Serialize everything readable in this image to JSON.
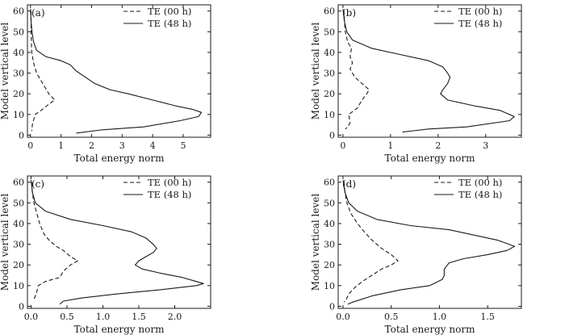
{
  "chart_data": [
    {
      "type": "line",
      "panel_label": "(a)",
      "xlabel": "Total energy norm",
      "ylabel": "Model vertical level",
      "xlim": [
        -0.1,
        5.9
      ],
      "ylim": [
        -1,
        63
      ],
      "xticks": [
        0,
        1,
        2,
        3,
        4,
        5
      ],
      "xtick_labels": [
        "0",
        "1",
        "2",
        "3",
        "4",
        "5"
      ],
      "yticks": [
        0,
        10,
        20,
        30,
        40,
        50,
        60
      ],
      "ytick_labels": [
        "0",
        "10",
        "20",
        "30",
        "40",
        "50",
        "60"
      ],
      "legend_position": "top-right",
      "series": [
        {
          "name": "TE (00 h)",
          "style": "dashed",
          "points": [
            [
              0.02,
              60
            ],
            [
              0.02,
              55
            ],
            [
              0.02,
              50
            ],
            [
              0.03,
              45
            ],
            [
              0.04,
              40
            ],
            [
              0.1,
              35
            ],
            [
              0.2,
              30
            ],
            [
              0.4,
              25
            ],
            [
              0.6,
              20
            ],
            [
              0.8,
              17
            ],
            [
              0.6,
              15
            ],
            [
              0.35,
              12
            ],
            [
              0.15,
              10
            ],
            [
              0.06,
              5
            ],
            [
              0.04,
              2
            ]
          ]
        },
        {
          "name": "TE (48 h)",
          "style": "solid",
          "points": [
            [
              0.0,
              61
            ],
            [
              0.02,
              55
            ],
            [
              0.05,
              50
            ],
            [
              0.1,
              45
            ],
            [
              0.2,
              41
            ],
            [
              0.5,
              38
            ],
            [
              1.0,
              36
            ],
            [
              1.3,
              34
            ],
            [
              1.5,
              31
            ],
            [
              1.8,
              28
            ],
            [
              2.1,
              25
            ],
            [
              2.6,
              22
            ],
            [
              3.2,
              20
            ],
            [
              4.0,
              17
            ],
            [
              4.8,
              14
            ],
            [
              5.3,
              12.5
            ],
            [
              5.6,
              11
            ],
            [
              5.5,
              9
            ],
            [
              4.9,
              7
            ],
            [
              3.7,
              4
            ],
            [
              2.3,
              2.5
            ],
            [
              1.5,
              1
            ]
          ]
        }
      ]
    },
    {
      "type": "line",
      "panel_label": "(b)",
      "xlabel": "Total energy norm",
      "ylabel": "Model vertical level",
      "xlim": [
        -0.1,
        3.75
      ],
      "ylim": [
        -1,
        63
      ],
      "xticks": [
        0,
        1,
        2,
        3
      ],
      "xtick_labels": [
        "0",
        "1",
        "2",
        "3"
      ],
      "yticks": [
        0,
        10,
        20,
        30,
        40,
        50,
        60
      ],
      "ytick_labels": [
        "0",
        "10",
        "20",
        "30",
        "40",
        "50",
        "60"
      ],
      "legend_position": "top-right",
      "series": [
        {
          "name": "TE (00 h)",
          "style": "dashed",
          "points": [
            [
              0.02,
              60
            ],
            [
              0.03,
              55
            ],
            [
              0.05,
              50
            ],
            [
              0.1,
              45
            ],
            [
              0.18,
              42
            ],
            [
              0.15,
              38
            ],
            [
              0.2,
              35
            ],
            [
              0.15,
              32
            ],
            [
              0.25,
              28
            ],
            [
              0.4,
              25
            ],
            [
              0.55,
              22
            ],
            [
              0.5,
              20
            ],
            [
              0.4,
              17
            ],
            [
              0.3,
              13
            ],
            [
              0.12,
              10
            ],
            [
              0.15,
              6
            ],
            [
              0.1,
              4
            ],
            [
              0.05,
              3
            ]
          ]
        },
        {
          "name": "TE (48 h)",
          "style": "solid",
          "points": [
            [
              0.0,
              61
            ],
            [
              0.03,
              55
            ],
            [
              0.08,
              50
            ],
            [
              0.2,
              46
            ],
            [
              0.6,
              42
            ],
            [
              1.2,
              39
            ],
            [
              1.8,
              36
            ],
            [
              2.1,
              33
            ],
            [
              2.2,
              30
            ],
            [
              2.25,
              28
            ],
            [
              2.2,
              25
            ],
            [
              2.1,
              22
            ],
            [
              2.05,
              20
            ],
            [
              2.2,
              17
            ],
            [
              2.8,
              14
            ],
            [
              3.3,
              12
            ],
            [
              3.6,
              9
            ],
            [
              3.5,
              7
            ],
            [
              2.6,
              4
            ],
            [
              1.8,
              3
            ],
            [
              1.25,
              1.5
            ]
          ]
        }
      ]
    },
    {
      "type": "line",
      "panel_label": "(c)",
      "xlabel": "Total energy norm",
      "ylabel": "Model vertical level",
      "xlim": [
        -0.05,
        2.5
      ],
      "ylim": [
        -1,
        63
      ],
      "xticks": [
        0.0,
        0.5,
        1.0,
        1.5,
        2.0
      ],
      "xtick_labels": [
        "0.0",
        "0.5",
        "1.0",
        "1.5",
        "2.0"
      ],
      "yticks": [
        0,
        10,
        20,
        30,
        40,
        50,
        60
      ],
      "ytick_labels": [
        "0",
        "10",
        "20",
        "30",
        "40",
        "50",
        "60"
      ],
      "legend_position": "top-right",
      "series": [
        {
          "name": "TE (00 h)",
          "style": "dashed",
          "points": [
            [
              0.01,
              60
            ],
            [
              0.02,
              55
            ],
            [
              0.04,
              50
            ],
            [
              0.08,
              45
            ],
            [
              0.12,
              40
            ],
            [
              0.18,
              35
            ],
            [
              0.25,
              32
            ],
            [
              0.35,
              29
            ],
            [
              0.45,
              27
            ],
            [
              0.55,
              24
            ],
            [
              0.65,
              22
            ],
            [
              0.55,
              20
            ],
            [
              0.45,
              17
            ],
            [
              0.4,
              14
            ],
            [
              0.2,
              12
            ],
            [
              0.1,
              10
            ],
            [
              0.08,
              7
            ],
            [
              0.05,
              4
            ],
            [
              0.02,
              3
            ]
          ]
        },
        {
          "name": "TE (48 h)",
          "style": "solid",
          "points": [
            [
              0.0,
              61
            ],
            [
              0.02,
              55
            ],
            [
              0.06,
              50
            ],
            [
              0.2,
              46
            ],
            [
              0.55,
              42
            ],
            [
              1.0,
              39
            ],
            [
              1.4,
              36
            ],
            [
              1.6,
              33
            ],
            [
              1.7,
              30
            ],
            [
              1.75,
              28
            ],
            [
              1.7,
              26
            ],
            [
              1.6,
              24
            ],
            [
              1.5,
              22
            ],
            [
              1.45,
              20
            ],
            [
              1.55,
              18
            ],
            [
              1.8,
              16
            ],
            [
              2.1,
              14
            ],
            [
              2.3,
              12
            ],
            [
              2.4,
              11
            ],
            [
              2.3,
              10
            ],
            [
              1.8,
              8
            ],
            [
              1.2,
              6
            ],
            [
              0.7,
              4
            ],
            [
              0.45,
              2.5
            ],
            [
              0.4,
              1
            ]
          ]
        }
      ]
    },
    {
      "type": "line",
      "panel_label": "(d)",
      "xlabel": "Total energy norm",
      "ylabel": "Model vertical level",
      "xlim": [
        -0.05,
        1.85
      ],
      "ylim": [
        -1,
        63
      ],
      "xticks": [
        0.0,
        0.5,
        1.0,
        1.5
      ],
      "xtick_labels": [
        "0.0",
        "0.5",
        "1.0",
        "1.5"
      ],
      "yticks": [
        0,
        10,
        20,
        30,
        40,
        50,
        60
      ],
      "ytick_labels": [
        "0",
        "10",
        "20",
        "30",
        "40",
        "50",
        "60"
      ],
      "legend_position": "top-right",
      "series": [
        {
          "name": "TE (00 h)",
          "style": "dashed",
          "points": [
            [
              0.01,
              60
            ],
            [
              0.02,
              55
            ],
            [
              0.04,
              50
            ],
            [
              0.08,
              45
            ],
            [
              0.15,
              40
            ],
            [
              0.22,
              36
            ],
            [
              0.3,
              32
            ],
            [
              0.4,
              28
            ],
            [
              0.5,
              25
            ],
            [
              0.57,
              22
            ],
            [
              0.5,
              20
            ],
            [
              0.4,
              18
            ],
            [
              0.3,
              15
            ],
            [
              0.2,
              12
            ],
            [
              0.12,
              9
            ],
            [
              0.06,
              6
            ],
            [
              0.03,
              3
            ],
            [
              0.01,
              2
            ]
          ]
        },
        {
          "name": "TE (48 h)",
          "style": "solid",
          "points": [
            [
              0.0,
              61
            ],
            [
              0.02,
              55
            ],
            [
              0.06,
              50
            ],
            [
              0.15,
              46
            ],
            [
              0.35,
              42
            ],
            [
              0.7,
              39
            ],
            [
              1.1,
              37
            ],
            [
              1.4,
              34
            ],
            [
              1.6,
              32
            ],
            [
              1.78,
              29
            ],
            [
              1.7,
              27
            ],
            [
              1.5,
              25
            ],
            [
              1.25,
              23
            ],
            [
              1.1,
              21
            ],
            [
              1.05,
              18
            ],
            [
              1.05,
              15
            ],
            [
              1.03,
              13
            ],
            [
              0.9,
              10
            ],
            [
              0.6,
              8
            ],
            [
              0.3,
              5
            ],
            [
              0.1,
              2
            ],
            [
              0.05,
              1
            ]
          ]
        }
      ]
    }
  ]
}
